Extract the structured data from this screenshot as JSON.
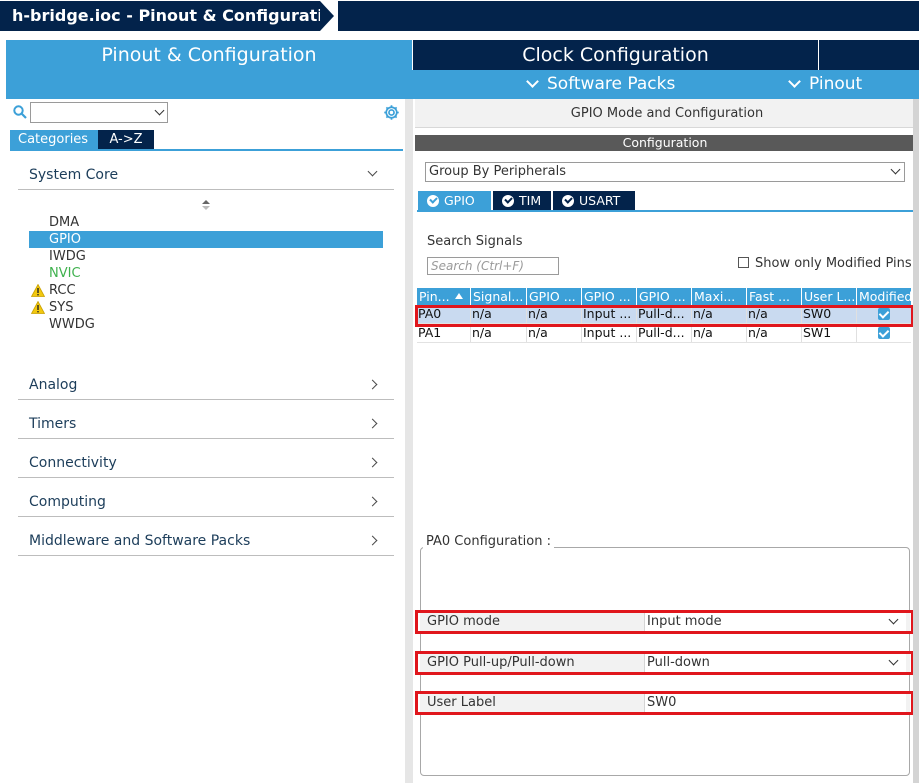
{
  "breadcrumb": {
    "title": "h-bridge.ioc - Pinout & Configuration"
  },
  "main_tabs": {
    "pinout": "Pinout & Configuration",
    "clock": "Clock Configuration"
  },
  "subbar": {
    "software_packs": "Software Packs",
    "pinout": "Pinout"
  },
  "left": {
    "search_value": "",
    "tabs": {
      "categories": "Categories",
      "az": "A->Z"
    },
    "sections": {
      "system_core": "System Core",
      "analog": "Analog",
      "timers": "Timers",
      "connectivity": "Connectivity",
      "computing": "Computing",
      "middleware": "Middleware and Software Packs"
    },
    "items": [
      "DMA",
      "GPIO",
      "IWDG",
      "NVIC",
      "RCC",
      "SYS",
      "WWDG"
    ],
    "selected_item": "GPIO",
    "colors": {
      "accent": "#3ca0d8",
      "dark": "#03234b",
      "nvic_green": "#3fb14e",
      "warning": "#f2c80f"
    }
  },
  "right": {
    "header": "GPIO Mode and Configuration",
    "configuration": "Configuration",
    "group_by": "Group By Peripherals",
    "peripheral_tabs": [
      "GPIO",
      "TIM",
      "USART"
    ],
    "search_label": "Search Signals",
    "search_placeholder": "Search (Ctrl+F)",
    "show_modified": "Show only Modified Pins",
    "table": {
      "columns": [
        "Pin...",
        "Signal...",
        "GPIO ...",
        "GPIO ...",
        "GPIO ...",
        "Maxi...",
        "Fast ...",
        "User L...",
        "Modified"
      ],
      "rows": [
        [
          "PA0",
          "n/a",
          "n/a",
          "Input ...",
          "Pull-d...",
          "n/a",
          "n/a",
          "SW0",
          true
        ],
        [
          "PA1",
          "n/a",
          "n/a",
          "Input ...",
          "Pull-d...",
          "n/a",
          "n/a",
          "SW1",
          true
        ]
      ]
    },
    "pa0_config": {
      "title": "PA0 Configuration :",
      "gpio_mode_label": "GPIO mode",
      "gpio_mode_value": "Input mode",
      "pull_label": "GPIO Pull-up/Pull-down",
      "pull_value": "Pull-down",
      "user_label_label": "User Label",
      "user_label_value": "SW0"
    }
  }
}
